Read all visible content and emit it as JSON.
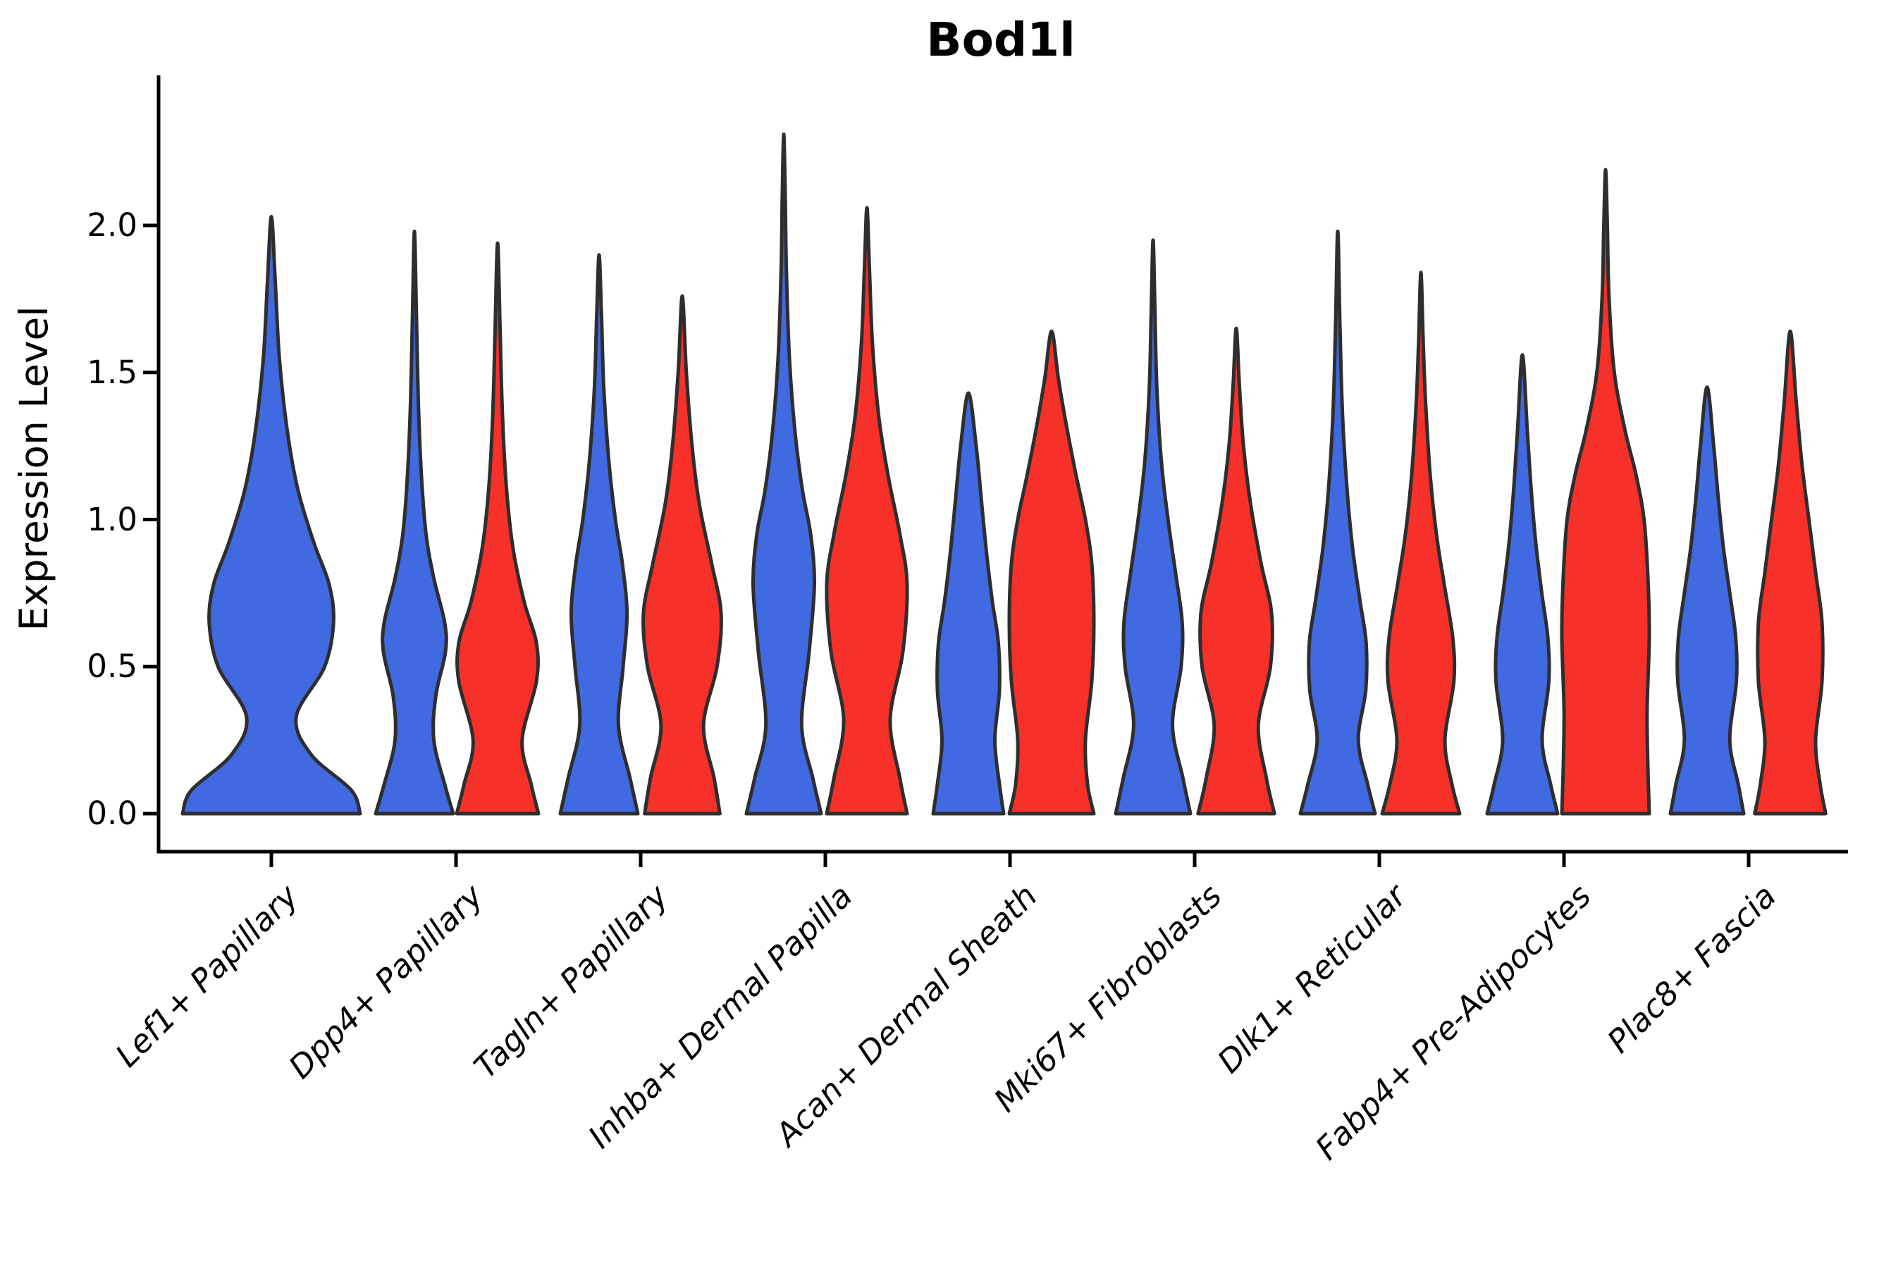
{
  "title": "Bod1l",
  "ylabel": "Expression Level",
  "axis": {
    "yticks": [
      0.0,
      0.5,
      1.0,
      1.5,
      2.0
    ],
    "ytick_labels": [
      "0.0",
      "0.5",
      "1.0",
      "1.5",
      "2.0"
    ]
  },
  "colors": {
    "blue": "#4169e1",
    "red": "#f8302a",
    "outline": "#2e2e2e",
    "axis": "#000000"
  },
  "chart_data": {
    "type": "violin",
    "title": "Bod1l",
    "xlabel": "",
    "ylabel": "Expression Level",
    "ylim": [
      -0.13,
      2.51
    ],
    "yticks": [
      0.0,
      0.5,
      1.0,
      1.5,
      2.0
    ],
    "grid": false,
    "legend": "none",
    "categories": [
      "Lef1+ Papillary",
      "Dpp4+ Papillary",
      "Tagln+ Papillary",
      "Inhba+ Dermal Papilla",
      "Acan+ Dermal Sheath",
      "Mki67+ Fibroblasts",
      "Dlk1+ Reticular",
      "Fabp4+ Pre-Adipocytes",
      "Plac8+ Fascia"
    ],
    "series": [
      {
        "name": "blue",
        "color": "#4169e1",
        "max_expression": [
          2.03,
          1.98,
          1.9,
          2.31,
          1.43,
          1.95,
          1.98,
          1.56,
          1.45
        ]
      },
      {
        "name": "red",
        "color": "#f8302a",
        "max_expression": [
          null,
          1.94,
          1.76,
          2.06,
          1.64,
          1.65,
          1.84,
          2.19,
          1.64
        ]
      }
    ],
    "violins": [
      {
        "category": "Lef1+ Papillary",
        "series": "blue",
        "side": "single",
        "tip": 2.03,
        "halfwidth": 126,
        "profile": [
          [
            0,
            1
          ],
          [
            0.08,
            0.9
          ],
          [
            0.2,
            0.45
          ],
          [
            0.33,
            0.28
          ],
          [
            0.5,
            0.6
          ],
          [
            0.65,
            0.7
          ],
          [
            0.78,
            0.65
          ],
          [
            0.92,
            0.48
          ],
          [
            1.1,
            0.3
          ],
          [
            1.3,
            0.18
          ],
          [
            1.55,
            0.09
          ],
          [
            1.8,
            0.045
          ]
        ]
      },
      {
        "category": "Dpp4+ Papillary",
        "series": "blue",
        "side": "left",
        "tip": 1.98,
        "halfwidth": 55,
        "profile": [
          [
            0,
            1
          ],
          [
            0.1,
            0.78
          ],
          [
            0.25,
            0.5
          ],
          [
            0.4,
            0.55
          ],
          [
            0.55,
            0.8
          ],
          [
            0.65,
            0.78
          ],
          [
            0.8,
            0.5
          ],
          [
            0.95,
            0.3
          ],
          [
            1.15,
            0.18
          ],
          [
            1.4,
            0.1
          ],
          [
            1.7,
            0.05
          ]
        ]
      },
      {
        "category": "Dpp4+ Papillary",
        "series": "red",
        "side": "right",
        "tip": 1.94,
        "halfwidth": 58,
        "profile": [
          [
            0,
            1
          ],
          [
            0.1,
            0.82
          ],
          [
            0.25,
            0.6
          ],
          [
            0.45,
            0.95
          ],
          [
            0.58,
            0.95
          ],
          [
            0.72,
            0.65
          ],
          [
            0.9,
            0.38
          ],
          [
            1.1,
            0.22
          ],
          [
            1.35,
            0.12
          ],
          [
            1.65,
            0.06
          ]
        ]
      },
      {
        "category": "Tagln+ Papillary",
        "series": "blue",
        "side": "left",
        "tip": 1.9,
        "halfwidth": 55,
        "profile": [
          [
            0,
            1
          ],
          [
            0.12,
            0.8
          ],
          [
            0.3,
            0.5
          ],
          [
            0.5,
            0.62
          ],
          [
            0.68,
            0.72
          ],
          [
            0.85,
            0.6
          ],
          [
            1.0,
            0.42
          ],
          [
            1.2,
            0.25
          ],
          [
            1.45,
            0.12
          ],
          [
            1.7,
            0.06
          ]
        ]
      },
      {
        "category": "Tagln+ Papillary",
        "series": "red",
        "side": "right",
        "tip": 1.76,
        "halfwidth": 58,
        "profile": [
          [
            0,
            0.92
          ],
          [
            0.12,
            0.78
          ],
          [
            0.3,
            0.52
          ],
          [
            0.5,
            0.85
          ],
          [
            0.68,
            0.95
          ],
          [
            0.85,
            0.72
          ],
          [
            1.05,
            0.42
          ],
          [
            1.25,
            0.24
          ],
          [
            1.5,
            0.1
          ]
        ]
      },
      {
        "category": "Inhba+ Dermal Papilla",
        "series": "blue",
        "side": "left",
        "tip": 2.31,
        "halfwidth": 53,
        "profile": [
          [
            0,
            1
          ],
          [
            0.12,
            0.78
          ],
          [
            0.3,
            0.48
          ],
          [
            0.55,
            0.68
          ],
          [
            0.78,
            0.82
          ],
          [
            0.95,
            0.72
          ],
          [
            1.1,
            0.5
          ],
          [
            1.3,
            0.3
          ],
          [
            1.55,
            0.15
          ],
          [
            1.85,
            0.07
          ],
          [
            2.1,
            0.04
          ]
        ]
      },
      {
        "category": "Inhba+ Dermal Papilla",
        "series": "red",
        "side": "right",
        "tip": 2.06,
        "halfwidth": 60,
        "profile": [
          [
            0,
            0.95
          ],
          [
            0.12,
            0.78
          ],
          [
            0.32,
            0.55
          ],
          [
            0.55,
            0.85
          ],
          [
            0.78,
            0.95
          ],
          [
            0.95,
            0.78
          ],
          [
            1.15,
            0.5
          ],
          [
            1.35,
            0.28
          ],
          [
            1.6,
            0.13
          ],
          [
            1.85,
            0.06
          ]
        ]
      },
      {
        "category": "Acan+ Dermal Sheath",
        "series": "blue",
        "side": "left",
        "tip": 1.43,
        "halfwidth": 50,
        "profile": [
          [
            0,
            1
          ],
          [
            0.1,
            0.88
          ],
          [
            0.25,
            0.75
          ],
          [
            0.42,
            0.88
          ],
          [
            0.58,
            0.85
          ],
          [
            0.72,
            0.68
          ],
          [
            0.88,
            0.52
          ],
          [
            1.05,
            0.38
          ],
          [
            1.25,
            0.22
          ]
        ]
      },
      {
        "category": "Acan+ Dermal Sheath",
        "series": "red",
        "side": "right",
        "tip": 1.64,
        "halfwidth": 60,
        "profile": [
          [
            0,
            1
          ],
          [
            0.1,
            0.85
          ],
          [
            0.25,
            0.8
          ],
          [
            0.45,
            0.95
          ],
          [
            0.65,
            1
          ],
          [
            0.85,
            0.95
          ],
          [
            1.0,
            0.8
          ],
          [
            1.15,
            0.58
          ],
          [
            1.32,
            0.35
          ],
          [
            1.48,
            0.16
          ]
        ]
      },
      {
        "category": "Mki67+ Fibroblasts",
        "series": "blue",
        "side": "left",
        "tip": 1.95,
        "halfwidth": 53,
        "profile": [
          [
            0,
            1
          ],
          [
            0.12,
            0.8
          ],
          [
            0.3,
            0.52
          ],
          [
            0.5,
            0.75
          ],
          [
            0.65,
            0.78
          ],
          [
            0.82,
            0.6
          ],
          [
            1.0,
            0.4
          ],
          [
            1.2,
            0.22
          ],
          [
            1.45,
            0.1
          ],
          [
            1.7,
            0.05
          ]
        ]
      },
      {
        "category": "Mki67+ Fibroblasts",
        "series": "red",
        "side": "right",
        "tip": 1.65,
        "halfwidth": 57,
        "profile": [
          [
            0,
            0.95
          ],
          [
            0.12,
            0.75
          ],
          [
            0.3,
            0.55
          ],
          [
            0.5,
            0.85
          ],
          [
            0.68,
            0.88
          ],
          [
            0.85,
            0.62
          ],
          [
            1.05,
            0.36
          ],
          [
            1.25,
            0.18
          ],
          [
            1.45,
            0.08
          ]
        ]
      },
      {
        "category": "Dlk1+ Reticular",
        "series": "blue",
        "side": "left",
        "tip": 1.98,
        "halfwidth": 53,
        "profile": [
          [
            0,
            1
          ],
          [
            0.1,
            0.8
          ],
          [
            0.25,
            0.55
          ],
          [
            0.42,
            0.75
          ],
          [
            0.58,
            0.76
          ],
          [
            0.72,
            0.6
          ],
          [
            0.9,
            0.4
          ],
          [
            1.1,
            0.25
          ],
          [
            1.35,
            0.13
          ],
          [
            1.65,
            0.06
          ]
        ]
      },
      {
        "category": "Dlk1+ Reticular",
        "series": "red",
        "side": "right",
        "tip": 1.84,
        "halfwidth": 55,
        "profile": [
          [
            0,
            1
          ],
          [
            0.1,
            0.8
          ],
          [
            0.25,
            0.62
          ],
          [
            0.45,
            0.85
          ],
          [
            0.6,
            0.82
          ],
          [
            0.78,
            0.6
          ],
          [
            0.95,
            0.4
          ],
          [
            1.15,
            0.24
          ],
          [
            1.4,
            0.12
          ],
          [
            1.6,
            0.06
          ]
        ]
      },
      {
        "category": "Fabp4+ Pre-Adipocytes",
        "series": "blue",
        "side": "left",
        "tip": 1.56,
        "halfwidth": 50,
        "profile": [
          [
            0,
            1
          ],
          [
            0.1,
            0.8
          ],
          [
            0.25,
            0.56
          ],
          [
            0.45,
            0.75
          ],
          [
            0.6,
            0.72
          ],
          [
            0.75,
            0.55
          ],
          [
            0.92,
            0.38
          ],
          [
            1.1,
            0.25
          ],
          [
            1.3,
            0.14
          ]
        ]
      },
      {
        "category": "Fabp4+ Pre-Adipocytes",
        "series": "red",
        "side": "right",
        "tip": 2.19,
        "halfwidth": 62,
        "profile": [
          [
            0,
            1
          ],
          [
            0.15,
            0.97
          ],
          [
            0.35,
            0.95
          ],
          [
            0.6,
            1
          ],
          [
            0.8,
            0.97
          ],
          [
            1.0,
            0.88
          ],
          [
            1.15,
            0.7
          ],
          [
            1.3,
            0.45
          ],
          [
            1.5,
            0.2
          ],
          [
            1.75,
            0.08
          ],
          [
            2.0,
            0.04
          ]
        ]
      },
      {
        "category": "Plac8+ Fascia",
        "series": "blue",
        "side": "left",
        "tip": 1.45,
        "halfwidth": 52,
        "profile": [
          [
            0,
            1
          ],
          [
            0.1,
            0.85
          ],
          [
            0.25,
            0.62
          ],
          [
            0.45,
            0.8
          ],
          [
            0.6,
            0.78
          ],
          [
            0.75,
            0.62
          ],
          [
            0.9,
            0.45
          ],
          [
            1.08,
            0.3
          ],
          [
            1.25,
            0.18
          ]
        ]
      },
      {
        "category": "Plac8+ Fascia",
        "series": "red",
        "side": "right",
        "tip": 1.64,
        "halfwidth": 53,
        "profile": [
          [
            0,
            0.95
          ],
          [
            0.1,
            0.8
          ],
          [
            0.25,
            0.68
          ],
          [
            0.45,
            0.85
          ],
          [
            0.65,
            0.85
          ],
          [
            0.82,
            0.68
          ],
          [
            1.0,
            0.5
          ],
          [
            1.18,
            0.32
          ],
          [
            1.4,
            0.16
          ]
        ]
      }
    ]
  }
}
